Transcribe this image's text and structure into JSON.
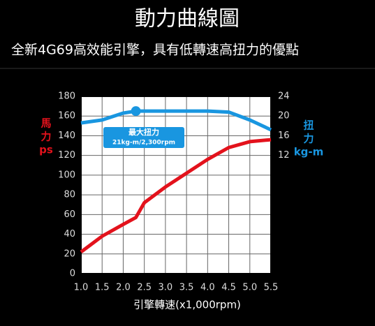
{
  "chart_data": {
    "type": "line",
    "title": "動力曲線圖",
    "subtitle": "全新4G69高效能引擎，具有低轉速高扭力的優點",
    "x_label": "引擎轉速(x1,000rpm)",
    "y_label": [
      "馬",
      "力",
      "ps"
    ],
    "y2_label": [
      "扭",
      "力",
      "kg-m"
    ],
    "annotation": [
      "最大扭力",
      "21kg-m/2,300rpm"
    ],
    "x": [
      1.0,
      1.5,
      2.0,
      2.3,
      2.5,
      3.0,
      3.5,
      4.0,
      4.5,
      5.0,
      5.5
    ],
    "series": [
      {
        "name": "馬力",
        "color": "#e3121c",
        "values": [
          22,
          38,
          50,
          57,
          72,
          88,
          102,
          116,
          128,
          134,
          136
        ]
      },
      {
        "name": "扭力",
        "color": "#1996e0",
        "axis": "y2",
        "values": [
          18.6,
          19.2,
          20.6,
          21,
          21,
          21,
          21,
          21,
          20.8,
          19.2,
          17.2
        ]
      }
    ],
    "xlim": [
      1.0,
      5.5
    ],
    "xticks": [
      {
        "value": 1.0,
        "label": "1.0"
      },
      1.5,
      {
        "value": 2.0,
        "label": "2.0"
      },
      2.5,
      {
        "value": 3.0,
        "label": "3.0"
      },
      3.5,
      {
        "value": 4.0,
        "label": "4.0"
      },
      4.5,
      {
        "value": 5.0,
        "label": "5.0"
      },
      5.5
    ],
    "ylim": [
      0,
      180
    ],
    "yticks": [
      0,
      20,
      40,
      60,
      80,
      100,
      120,
      140,
      160,
      180
    ],
    "y2lim": [
      -12,
      24
    ],
    "y2ticks": [
      12,
      16,
      20,
      24
    ],
    "grid": true
  }
}
